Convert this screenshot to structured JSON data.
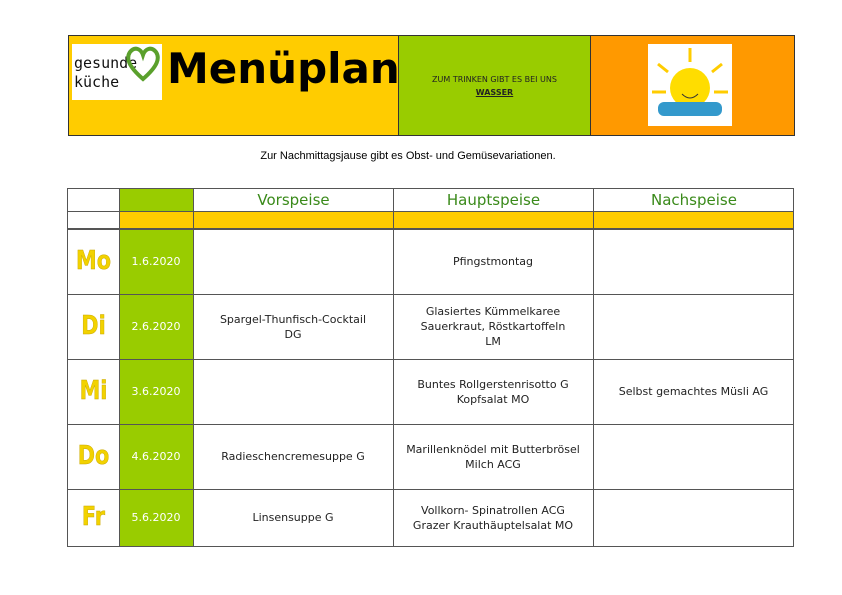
{
  "header": {
    "brand": [
      "gesunde",
      "küche"
    ],
    "title": "Menüplan",
    "drink_note": "ZUM TRINKEN GIBT ES BEI UNS",
    "drink": "WASSER"
  },
  "note": "Zur Nachmittagsjause gibt es Obst- und Gemüsevariationen.",
  "table": {
    "headers": [
      "Vorspeise",
      "Hauptspeise",
      "Nachspeise"
    ],
    "rows": [
      {
        "day": "Mo",
        "date": "1.6.2020",
        "vorspeise": [],
        "hauptspeise": [
          "Pfingstmontag"
        ],
        "nachspeise": []
      },
      {
        "day": "Di",
        "date": "2.6.2020",
        "vorspeise": [
          "Spargel-Thunfisch-Cocktail",
          "DG"
        ],
        "hauptspeise": [
          "Glasiertes Kümmelkaree",
          "Sauerkraut, Röstkartoffeln",
          "LM"
        ],
        "nachspeise": []
      },
      {
        "day": "Mi",
        "date": "3.6.2020",
        "vorspeise": [],
        "hauptspeise": [
          "Buntes Rollgerstenrisotto G",
          "Kopfsalat MO"
        ],
        "nachspeise": [
          "Selbst gemachtes Müsli AG"
        ]
      },
      {
        "day": "Do",
        "date": "4.6.2020",
        "vorspeise": [
          "Radieschencremesuppe G"
        ],
        "hauptspeise": [
          "Marillenknödel mit Butterbrösel",
          "Milch ACG"
        ],
        "nachspeise": []
      },
      {
        "day": "Fr",
        "date": "5.6.2020",
        "vorspeise": [
          "Linsensuppe G"
        ],
        "hauptspeise": [
          "Vollkorn- Spinatrollen ACG",
          "Grazer Krauthäuptelsalat MO"
        ],
        "nachspeise": []
      }
    ]
  }
}
